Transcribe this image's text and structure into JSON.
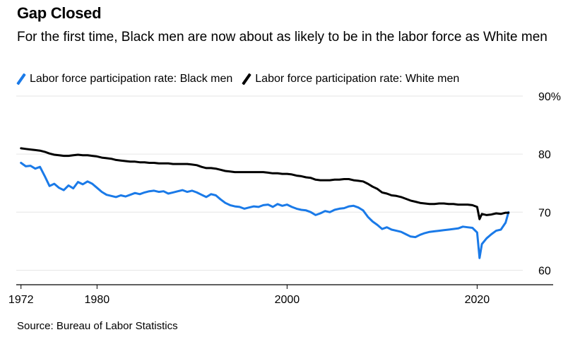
{
  "title": "Gap Closed",
  "subtitle": "For the first time, Black men are now about as likely to be in the labor force as White men",
  "source": "Source: Bureau of Labor Statistics",
  "colors": {
    "black_men": "#1a7ae8",
    "white_men": "#000000",
    "grid": "#e6e6e6",
    "axis": "#000000"
  },
  "chart_data": {
    "type": "line",
    "title": "Gap Closed",
    "subtitle": "For the first time, Black men are now about as likely to be in the labor force as White men",
    "xlabel": "",
    "ylabel": "",
    "xlim": [
      1971.5,
      2028
    ],
    "ylim": [
      57.5,
      90
    ],
    "x_ticks": [
      "1972",
      "1980",
      "2000",
      "2020"
    ],
    "x_tick_values": [
      1972,
      1980,
      2000,
      2020
    ],
    "y_ticks": [
      "90%",
      "80",
      "70",
      "60"
    ],
    "y_tick_values": [
      90,
      80,
      70,
      60
    ],
    "grid": true,
    "legend_position": "top-left",
    "series": [
      {
        "name": "Labor force participation rate: Black men",
        "color": "#1a7ae8",
        "points": [
          [
            1972.0,
            78.5
          ],
          [
            1972.5,
            77.9
          ],
          [
            1973.0,
            78.0
          ],
          [
            1973.5,
            77.5
          ],
          [
            1974.0,
            77.8
          ],
          [
            1974.5,
            76.2
          ],
          [
            1975.0,
            74.5
          ],
          [
            1975.5,
            74.9
          ],
          [
            1976.0,
            74.2
          ],
          [
            1976.5,
            73.8
          ],
          [
            1977.0,
            74.6
          ],
          [
            1977.5,
            74.1
          ],
          [
            1978.0,
            75.2
          ],
          [
            1978.5,
            74.8
          ],
          [
            1979.0,
            75.3
          ],
          [
            1979.5,
            74.9
          ],
          [
            1980.0,
            74.2
          ],
          [
            1980.5,
            73.5
          ],
          [
            1981.0,
            73.0
          ],
          [
            1981.5,
            72.8
          ],
          [
            1982.0,
            72.6
          ],
          [
            1982.5,
            72.9
          ],
          [
            1983.0,
            72.7
          ],
          [
            1983.5,
            73.0
          ],
          [
            1984.0,
            73.3
          ],
          [
            1984.5,
            73.1
          ],
          [
            1985.0,
            73.4
          ],
          [
            1985.5,
            73.6
          ],
          [
            1986.0,
            73.7
          ],
          [
            1986.5,
            73.5
          ],
          [
            1987.0,
            73.6
          ],
          [
            1987.5,
            73.2
          ],
          [
            1988.0,
            73.4
          ],
          [
            1988.5,
            73.6
          ],
          [
            1989.0,
            73.8
          ],
          [
            1989.5,
            73.5
          ],
          [
            1990.0,
            73.7
          ],
          [
            1990.5,
            73.4
          ],
          [
            1991.0,
            73.0
          ],
          [
            1991.5,
            72.6
          ],
          [
            1992.0,
            73.1
          ],
          [
            1992.5,
            72.9
          ],
          [
            1993.0,
            72.2
          ],
          [
            1993.5,
            71.6
          ],
          [
            1994.0,
            71.2
          ],
          [
            1994.5,
            71.0
          ],
          [
            1995.0,
            70.9
          ],
          [
            1995.5,
            70.6
          ],
          [
            1996.0,
            70.8
          ],
          [
            1996.5,
            71.0
          ],
          [
            1997.0,
            70.9
          ],
          [
            1997.5,
            71.2
          ],
          [
            1998.0,
            71.3
          ],
          [
            1998.5,
            70.9
          ],
          [
            1999.0,
            71.4
          ],
          [
            1999.5,
            71.1
          ],
          [
            2000.0,
            71.3
          ],
          [
            2000.5,
            70.9
          ],
          [
            2001.0,
            70.6
          ],
          [
            2001.5,
            70.4
          ],
          [
            2002.0,
            70.3
          ],
          [
            2002.5,
            70.0
          ],
          [
            2003.0,
            69.5
          ],
          [
            2003.5,
            69.8
          ],
          [
            2004.0,
            70.2
          ],
          [
            2004.5,
            70.0
          ],
          [
            2005.0,
            70.4
          ],
          [
            2005.5,
            70.6
          ],
          [
            2006.0,
            70.7
          ],
          [
            2006.5,
            71.0
          ],
          [
            2007.0,
            71.1
          ],
          [
            2007.5,
            70.8
          ],
          [
            2008.0,
            70.3
          ],
          [
            2008.5,
            69.2
          ],
          [
            2009.0,
            68.4
          ],
          [
            2009.5,
            67.8
          ],
          [
            2010.0,
            67.1
          ],
          [
            2010.5,
            67.4
          ],
          [
            2011.0,
            67.0
          ],
          [
            2011.5,
            66.8
          ],
          [
            2012.0,
            66.6
          ],
          [
            2012.5,
            66.2
          ],
          [
            2013.0,
            65.8
          ],
          [
            2013.5,
            65.7
          ],
          [
            2014.0,
            66.1
          ],
          [
            2014.5,
            66.4
          ],
          [
            2015.0,
            66.6
          ],
          [
            2015.5,
            66.7
          ],
          [
            2016.0,
            66.8
          ],
          [
            2016.5,
            66.9
          ],
          [
            2017.0,
            67.0
          ],
          [
            2017.5,
            67.1
          ],
          [
            2018.0,
            67.2
          ],
          [
            2018.5,
            67.5
          ],
          [
            2019.0,
            67.4
          ],
          [
            2019.5,
            67.3
          ],
          [
            2020.0,
            66.5
          ],
          [
            2020.25,
            62.1
          ],
          [
            2020.5,
            64.5
          ],
          [
            2021.0,
            65.5
          ],
          [
            2021.5,
            66.2
          ],
          [
            2022.0,
            66.8
          ],
          [
            2022.5,
            67.0
          ],
          [
            2023.0,
            68.2
          ],
          [
            2023.3,
            70.0
          ]
        ]
      },
      {
        "name": "Labor force participation rate: White men",
        "color": "#000000",
        "points": [
          [
            1972.0,
            81.0
          ],
          [
            1972.5,
            80.9
          ],
          [
            1973.0,
            80.8
          ],
          [
            1973.5,
            80.7
          ],
          [
            1974.0,
            80.6
          ],
          [
            1974.5,
            80.4
          ],
          [
            1975.0,
            80.1
          ],
          [
            1975.5,
            79.9
          ],
          [
            1976.0,
            79.8
          ],
          [
            1976.5,
            79.7
          ],
          [
            1977.0,
            79.7
          ],
          [
            1977.5,
            79.8
          ],
          [
            1978.0,
            79.9
          ],
          [
            1978.5,
            79.8
          ],
          [
            1979.0,
            79.8
          ],
          [
            1979.5,
            79.7
          ],
          [
            1980.0,
            79.6
          ],
          [
            1980.5,
            79.4
          ],
          [
            1981.0,
            79.3
          ],
          [
            1981.5,
            79.2
          ],
          [
            1982.0,
            79.0
          ],
          [
            1982.5,
            78.9
          ],
          [
            1983.0,
            78.8
          ],
          [
            1983.5,
            78.7
          ],
          [
            1984.0,
            78.7
          ],
          [
            1984.5,
            78.6
          ],
          [
            1985.0,
            78.6
          ],
          [
            1985.5,
            78.5
          ],
          [
            1986.0,
            78.5
          ],
          [
            1986.5,
            78.4
          ],
          [
            1987.0,
            78.4
          ],
          [
            1987.5,
            78.4
          ],
          [
            1988.0,
            78.3
          ],
          [
            1988.5,
            78.3
          ],
          [
            1989.0,
            78.3
          ],
          [
            1989.5,
            78.3
          ],
          [
            1990.0,
            78.2
          ],
          [
            1990.5,
            78.1
          ],
          [
            1991.0,
            77.8
          ],
          [
            1991.5,
            77.6
          ],
          [
            1992.0,
            77.6
          ],
          [
            1992.5,
            77.5
          ],
          [
            1993.0,
            77.3
          ],
          [
            1993.5,
            77.1
          ],
          [
            1994.0,
            77.0
          ],
          [
            1994.5,
            76.9
          ],
          [
            1995.0,
            76.9
          ],
          [
            1995.5,
            76.9
          ],
          [
            1996.0,
            76.9
          ],
          [
            1996.5,
            76.9
          ],
          [
            1997.0,
            76.9
          ],
          [
            1997.5,
            76.9
          ],
          [
            1998.0,
            76.8
          ],
          [
            1998.5,
            76.7
          ],
          [
            1999.0,
            76.7
          ],
          [
            1999.5,
            76.6
          ],
          [
            2000.0,
            76.6
          ],
          [
            2000.5,
            76.5
          ],
          [
            2001.0,
            76.3
          ],
          [
            2001.5,
            76.2
          ],
          [
            2002.0,
            76.0
          ],
          [
            2002.5,
            75.9
          ],
          [
            2003.0,
            75.6
          ],
          [
            2003.5,
            75.5
          ],
          [
            2004.0,
            75.5
          ],
          [
            2004.5,
            75.5
          ],
          [
            2005.0,
            75.6
          ],
          [
            2005.5,
            75.6
          ],
          [
            2006.0,
            75.7
          ],
          [
            2006.5,
            75.7
          ],
          [
            2007.0,
            75.5
          ],
          [
            2007.5,
            75.4
          ],
          [
            2008.0,
            75.3
          ],
          [
            2008.5,
            74.9
          ],
          [
            2009.0,
            74.4
          ],
          [
            2009.5,
            74.0
          ],
          [
            2010.0,
            73.4
          ],
          [
            2010.5,
            73.2
          ],
          [
            2011.0,
            72.9
          ],
          [
            2011.5,
            72.8
          ],
          [
            2012.0,
            72.6
          ],
          [
            2012.5,
            72.3
          ],
          [
            2013.0,
            72.0
          ],
          [
            2013.5,
            71.8
          ],
          [
            2014.0,
            71.6
          ],
          [
            2014.5,
            71.5
          ],
          [
            2015.0,
            71.4
          ],
          [
            2015.5,
            71.4
          ],
          [
            2016.0,
            71.5
          ],
          [
            2016.5,
            71.5
          ],
          [
            2017.0,
            71.4
          ],
          [
            2017.5,
            71.4
          ],
          [
            2018.0,
            71.3
          ],
          [
            2018.5,
            71.3
          ],
          [
            2019.0,
            71.3
          ],
          [
            2019.5,
            71.2
          ],
          [
            2020.0,
            70.9
          ],
          [
            2020.25,
            68.8
          ],
          [
            2020.5,
            69.7
          ],
          [
            2021.0,
            69.5
          ],
          [
            2021.5,
            69.6
          ],
          [
            2022.0,
            69.8
          ],
          [
            2022.5,
            69.7
          ],
          [
            2023.0,
            69.9
          ],
          [
            2023.3,
            69.9
          ]
        ]
      }
    ]
  }
}
